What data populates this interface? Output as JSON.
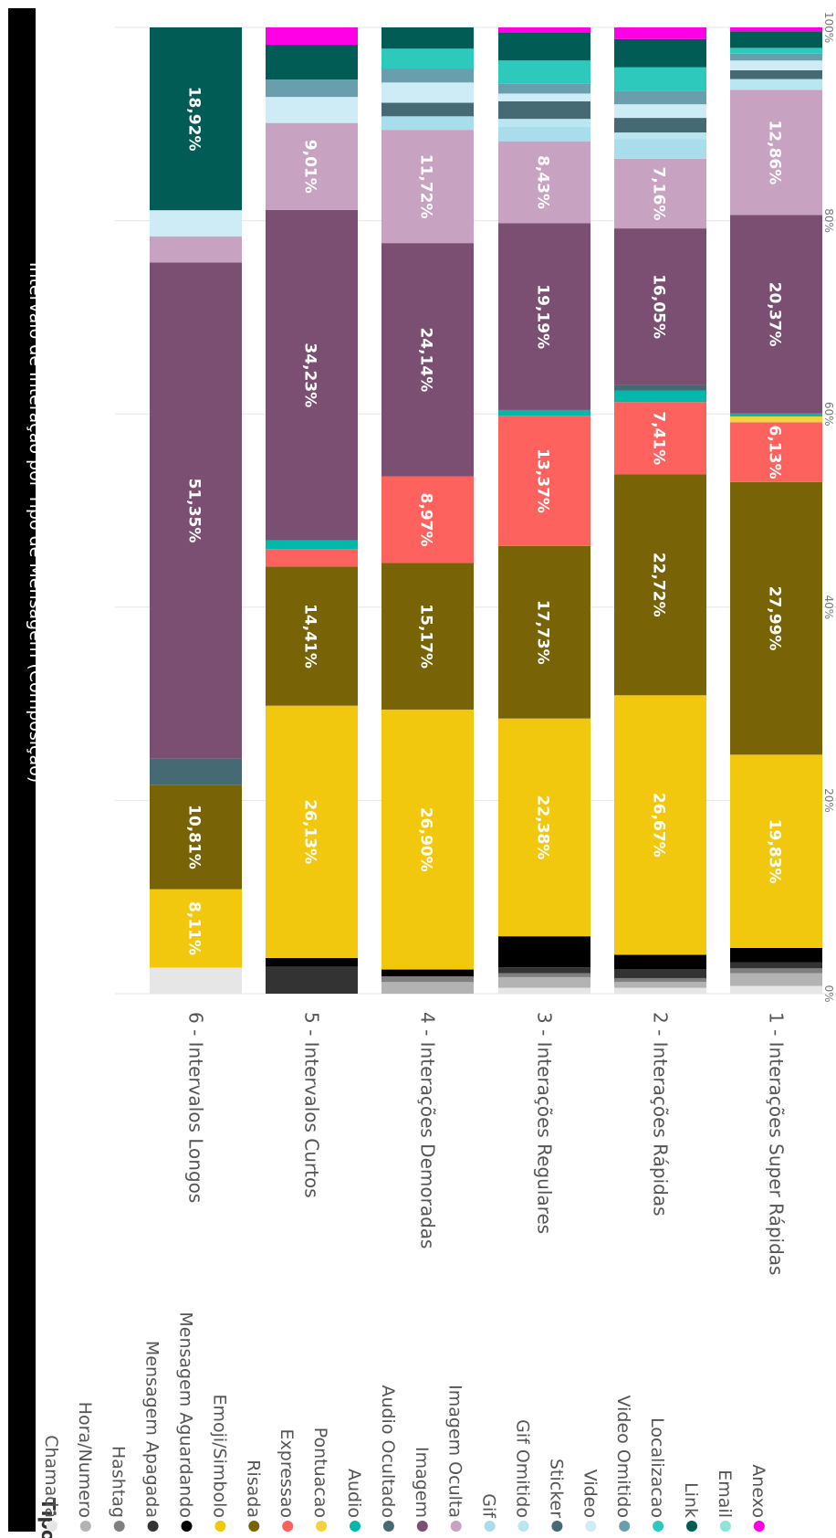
{
  "chart_data": {
    "type": "bar",
    "stacked": "100%",
    "orientation": "vertical (page rotated 90° clockwise)",
    "title": "Intervalo de Interação por Tipo de Mensagem (Composição)",
    "legend_title": "Tipo",
    "legend_position": "bottom",
    "ylim": [
      0,
      100
    ],
    "y_ticks": [
      "0%",
      "20%",
      "40%",
      "60%",
      "80%",
      "100%"
    ],
    "grid": true,
    "categories": [
      "1 - Interações Super Rápidas",
      "2 - Interações Rápidas",
      "3 - Interações Regulares",
      "4 - Interações Demoradas",
      "5 - Intervalos Curtos",
      "6 - Intervalos Longos"
    ],
    "series": [
      {
        "name": "Chamada",
        "color": "#E6E6E6",
        "values": [
          0.8,
          0.6,
          0.6,
          0,
          0,
          2.7
        ]
      },
      {
        "name": "Hora/Numero",
        "color": "#B3B3B3",
        "values": [
          1.3,
          0.6,
          1.1,
          1.2,
          0,
          0
        ]
      },
      {
        "name": "Hashtag",
        "color": "#808080",
        "values": [
          0.5,
          0.4,
          0.4,
          0.6,
          0,
          0
        ]
      },
      {
        "name": "Mensagem Apagada",
        "color": "#333333",
        "values": [
          0.6,
          0.9,
          0.6,
          0,
          2.8,
          0
        ]
      },
      {
        "name": "Mensagem Aguardando",
        "color": "#000000",
        "values": [
          1.5,
          1.5,
          3.2,
          0.7,
          0.9,
          0
        ]
      },
      {
        "name": "Emoji/Simbolo",
        "color": "#F2C80F",
        "values": [
          19.83,
          26.67,
          22.38,
          26.9,
          26.13,
          8.11
        ],
        "labels": [
          "19,83%",
          "26,67%",
          "22,38%",
          "26,90%",
          "26,13%",
          "8,11%"
        ]
      },
      {
        "name": "Risada",
        "color": "#786306",
        "values": [
          27.99,
          22.72,
          17.73,
          15.17,
          14.41,
          10.81
        ],
        "labels": [
          "27,99%",
          "22,72%",
          "17,73%",
          "15,17%",
          "14,41%",
          "10,81%"
        ]
      },
      {
        "name": "Expressao",
        "color": "#FD625E",
        "values": [
          6.13,
          7.41,
          13.37,
          8.97,
          1.8,
          0
        ],
        "labels": [
          "6,13%",
          "7,41%",
          "13,37%",
          "8,97%",
          "",
          ""
        ]
      },
      {
        "name": "Pontuacao",
        "color": "#F5D33F",
        "values": [
          0.6,
          0,
          0,
          0,
          0,
          0
        ]
      },
      {
        "name": "Audio",
        "color": "#01B8AA",
        "values": [
          0.3,
          1.2,
          0.6,
          0,
          0.9,
          0
        ]
      },
      {
        "name": "Audio Ocultado",
        "color": "#466A74",
        "values": [
          0,
          0.6,
          0,
          0,
          0,
          2.7
        ]
      },
      {
        "name": "Imagem",
        "color": "#7B4F71",
        "values": [
          20.37,
          16.05,
          19.19,
          24.14,
          34.23,
          51.35
        ],
        "labels": [
          "20,37%",
          "16,05%",
          "19,19%",
          "24,14%",
          "34,23%",
          "51,35%"
        ]
      },
      {
        "name": "Imagem Oculta",
        "color": "#C8A2C1",
        "values": [
          12.86,
          7.16,
          8.43,
          11.72,
          9.01,
          2.7
        ],
        "labels": [
          "12,86%",
          "7,16%",
          "8,43%",
          "11,72%",
          "9,01%",
          ""
        ]
      },
      {
        "name": "Gif",
        "color": "#A8DEEB",
        "values": [
          0,
          2.0,
          1.5,
          1.4,
          0,
          0
        ]
      },
      {
        "name": "Gif Omitido",
        "color": "#B9E6F1",
        "values": [
          1.1,
          0.7,
          0.8,
          0,
          0,
          0
        ]
      },
      {
        "name": "Sticker",
        "color": "#466A74",
        "values": [
          0.9,
          1.5,
          1.8,
          1.4,
          0,
          0
        ]
      },
      {
        "name": "Video",
        "color": "#CDECF6",
        "values": [
          1.0,
          1.4,
          0.8,
          2.1,
          2.7,
          2.7
        ]
      },
      {
        "name": "Video Omitido",
        "color": "#699FAD",
        "values": [
          0.7,
          1.4,
          1.0,
          1.4,
          1.8,
          0
        ]
      },
      {
        "name": "Localizacao",
        "color": "#2EC9BD",
        "values": [
          0.6,
          2.4,
          2.4,
          2.1,
          0,
          0
        ]
      },
      {
        "name": "Link",
        "color": "#005C55",
        "values": [
          1.7,
          2.9,
          2.9,
          2.2,
          3.6,
          18.92
        ],
        "labels": [
          "",
          "",
          "",
          "",
          "",
          "18,92%"
        ]
      },
      {
        "name": "Email",
        "color": "#8FE3DB",
        "values": [
          0,
          0,
          0,
          0,
          0,
          0
        ]
      },
      {
        "name": "Anexo",
        "color": "#FF00E6",
        "values": [
          0.4,
          1.2,
          0.5,
          0,
          1.8,
          0
        ]
      }
    ]
  }
}
